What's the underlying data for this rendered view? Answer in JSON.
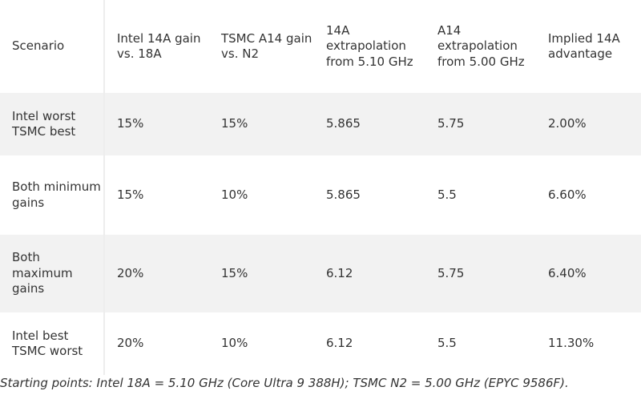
{
  "table": {
    "headers": [
      "Scenario",
      "Intel 14A gain vs. 18A",
      "TSMC A14 gain vs. N2",
      "14A extrapolation from 5.10 GHz",
      "A14 extrapolation from 5.00 GHz",
      "Implied 14A advantage"
    ],
    "rows": [
      [
        "Intel worst TSMC best",
        "15%",
        "15%",
        "5.865",
        "5.75",
        "2.00%"
      ],
      [
        "Both minimum gains",
        "15%",
        "10%",
        "5.865",
        "5.5",
        "6.60%"
      ],
      [
        "Both maximum gains",
        "20%",
        "15%",
        "6.12",
        "5.75",
        "6.40%"
      ],
      [
        "Intel best TSMC worst",
        "20%",
        "10%",
        "6.12",
        "5.5",
        "11.30%"
      ]
    ]
  },
  "caption": "Starting points: Intel 18A = 5.10 GHz (Core Ultra 9 388H); TSMC N2 = 5.00 GHz (EPYC 9586F)."
}
